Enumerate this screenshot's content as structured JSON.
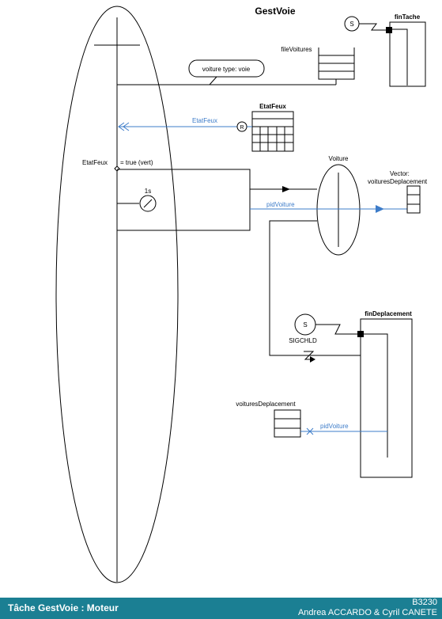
{
  "diagram": {
    "title": "GestVoie",
    "fin_tache": "finTache",
    "s_label": "S",
    "file_voitures": "fileVoitures",
    "voiture_type": "voiture type: voie",
    "etat_feux_title": "EtatFeux",
    "etat_feux_link": "EtatFeux",
    "r_label": "R",
    "etat_feux_condition_var": "EtatFeux",
    "etat_feux_condition_value": "= true (vert)",
    "timer_label": "1s",
    "voiture": "Voiture",
    "vector_label_line1": "Vector:",
    "vector_label_line2": "voituresDeplacement",
    "pid_voiture_1": "pidVoiture",
    "sigchld_s": "S",
    "sigchld": "SIGCHLD",
    "fin_deplacement": "finDeplacement",
    "voitures_deplacement": "voituresDeplacement",
    "pid_voiture_2": "pidVoiture"
  },
  "footer": {
    "title": "Tâche GestVoie : Moteur",
    "code": "B3230",
    "authors": "Andrea ACCARDO & Cyril CANETE"
  },
  "colors": {
    "link_blue": "#3d7cc9",
    "footer_bg": "#1b7f93",
    "line": "#000000"
  }
}
